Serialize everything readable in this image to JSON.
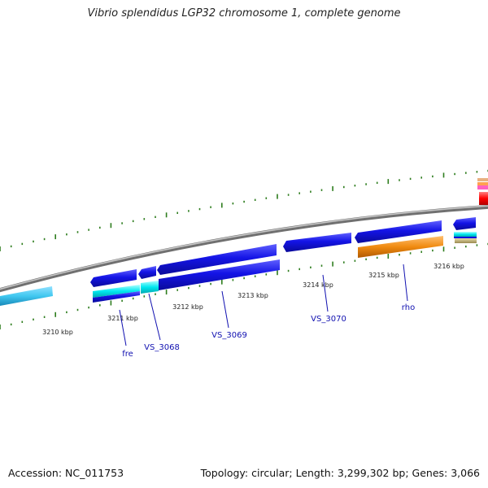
{
  "header": {
    "title": "Vibrio splendidus LGP32 chromosome 1, complete genome"
  },
  "footer": {
    "accession": "Accession: NC_011753",
    "summary": "Topology: circular; Length: 3,299,302 bp; Genes: 3,066"
  },
  "map": {
    "kbp_labels": [
      "3210 kbp",
      "3211 kbp",
      "3212 kbp",
      "3213 kbp",
      "3214 kbp",
      "3215 kbp",
      "3216 kbp"
    ],
    "gene_labels": [
      "fre",
      "VS_3068",
      "VS_3069",
      "VS_3070",
      "rho"
    ]
  },
  "colors": {
    "blue_gene": "#1010e0",
    "cyan_gene": "#00e8f0",
    "light_blue_gene": "#40c8f0",
    "orange_gene": "#f08010",
    "red_gene": "#ff0000",
    "tan_gene": "#c8b878",
    "backbone": "#909090",
    "tick": "#2e7d1e",
    "label": "#1010b0"
  }
}
